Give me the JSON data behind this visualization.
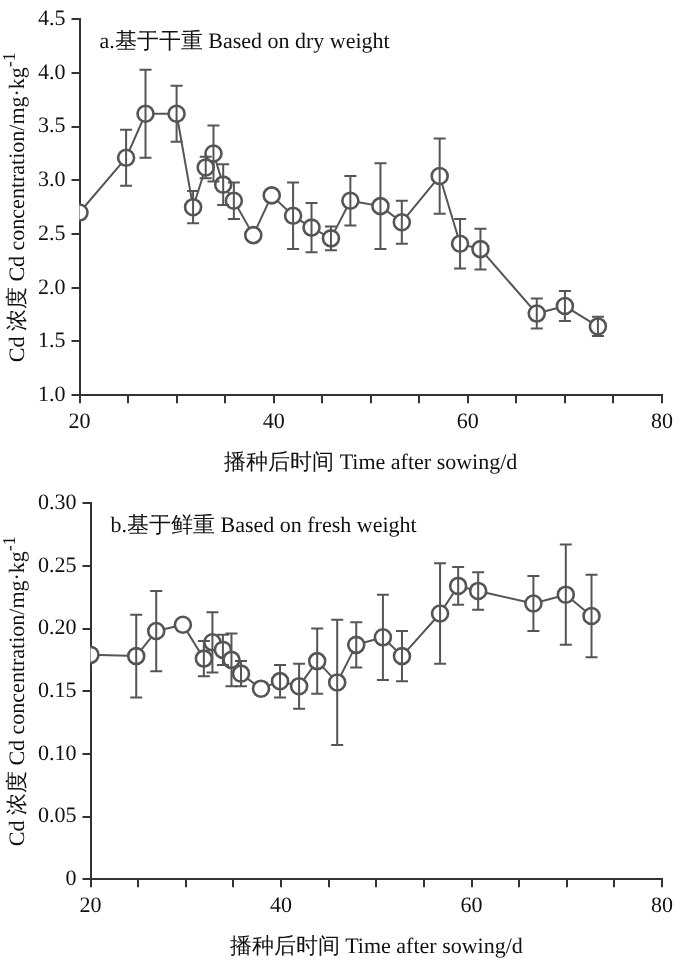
{
  "chart_data": [
    {
      "type": "line",
      "title": "a.基于干重 Based on dry weight",
      "xlabel": "播种后时间 Time after sowing/d",
      "ylabel": "Cd 浓度 Cd concentration/mg·kg$^{-1}$",
      "x": [
        20,
        24.8,
        26.8,
        30,
        31.7,
        33,
        33.8,
        34.8,
        35.9,
        37.9,
        39.8,
        42,
        43.9,
        45.9,
        47.9,
        51,
        53.2,
        57.1,
        59.2,
        61.3,
        67.1,
        70,
        73.4
      ],
      "series": [
        {
          "color": "#555555",
          "values": [
            2.7,
            3.21,
            3.62,
            3.62,
            2.75,
            3.12,
            3.25,
            2.96,
            2.81,
            2.49,
            2.86,
            2.67,
            2.56,
            2.46,
            2.81,
            2.76,
            2.61,
            3.04,
            2.41,
            2.36,
            1.76,
            1.83,
            1.64
          ],
          "errors": [
            null,
            0.26,
            0.41,
            0.26,
            0.15,
            0.1,
            0.26,
            0.19,
            0.17,
            null,
            null,
            0.31,
            0.23,
            0.11,
            0.23,
            0.4,
            0.2,
            0.35,
            0.23,
            0.19,
            0.14,
            0.14,
            0.09
          ]
        }
      ],
      "xlim": [
        20,
        80
      ],
      "xticks": [
        20,
        {
          "value": 25,
          "label": null
        },
        {
          "value": 30,
          "label": null
        },
        {
          "value": 35,
          "label": null
        },
        40,
        {
          "value": 45,
          "label": null
        },
        {
          "value": 50,
          "label": null
        },
        {
          "value": 55,
          "label": null
        },
        60,
        {
          "value": 65,
          "label": null
        },
        {
          "value": 70,
          "label": null
        },
        {
          "value": 75,
          "label": null
        },
        80
      ],
      "ylim": [
        1,
        4.5
      ],
      "yticks": [
        {
          "value": 1,
          "label": "1.0"
        },
        1.5,
        {
          "value": 2,
          "label": "2.0"
        },
        2.5,
        {
          "value": 3,
          "label": "3.0"
        },
        3.5,
        {
          "value": 4,
          "label": "4.0"
        },
        4.5
      ],
      "grid": false,
      "legend": false,
      "marker": "circle",
      "line_style": "solid"
    },
    {
      "type": "line",
      "title": "b.基于鲜重 Based on fresh weight",
      "xlabel": "播种后时间 Time after sowing/d",
      "ylabel": "Cd 浓度 Cd concentration/mg·kg$^{-1}$",
      "x": [
        20,
        24.8,
        26.9,
        29.7,
        31.9,
        32.8,
        33.9,
        34.8,
        35.8,
        37.9,
        39.9,
        41.9,
        43.8,
        45.9,
        47.9,
        50.7,
        52.7,
        56.7,
        58.6,
        60.7,
        66.5,
        69.9,
        72.6
      ],
      "series": [
        {
          "color": "#555555",
          "values": [
            0.179,
            0.178,
            0.198,
            0.203,
            0.176,
            0.189,
            0.183,
            0.175,
            0.164,
            0.152,
            0.158,
            0.154,
            0.174,
            0.157,
            0.187,
            0.193,
            0.178,
            0.212,
            0.234,
            0.23,
            0.22,
            0.227,
            0.21
          ],
          "errors": [
            null,
            0.033,
            0.032,
            null,
            0.014,
            0.024,
            0.012,
            0.021,
            0.01,
            null,
            0.013,
            0.018,
            0.026,
            0.05,
            0.018,
            0.034,
            0.02,
            0.04,
            0.015,
            0.015,
            0.022,
            0.04,
            0.033
          ]
        }
      ],
      "xlim": [
        20,
        80
      ],
      "xticks": [
        20,
        {
          "value": 25,
          "label": null
        },
        {
          "value": 30,
          "label": null
        },
        {
          "value": 35,
          "label": null
        },
        40,
        {
          "value": 45,
          "label": null
        },
        {
          "value": 50,
          "label": null
        },
        {
          "value": 55,
          "label": null
        },
        60,
        {
          "value": 65,
          "label": null
        },
        {
          "value": 70,
          "label": null
        },
        {
          "value": 75,
          "label": null
        },
        80
      ],
      "ylim": [
        0,
        0.3
      ],
      "yticks": [
        0,
        0.05,
        {
          "value": 0.1,
          "label": "0.10"
        },
        0.15,
        {
          "value": 0.2,
          "label": "0.20"
        },
        0.25,
        {
          "value": 0.3,
          "label": "0.30"
        }
      ],
      "grid": false,
      "legend": false,
      "marker": "circle",
      "line_style": "solid"
    }
  ]
}
